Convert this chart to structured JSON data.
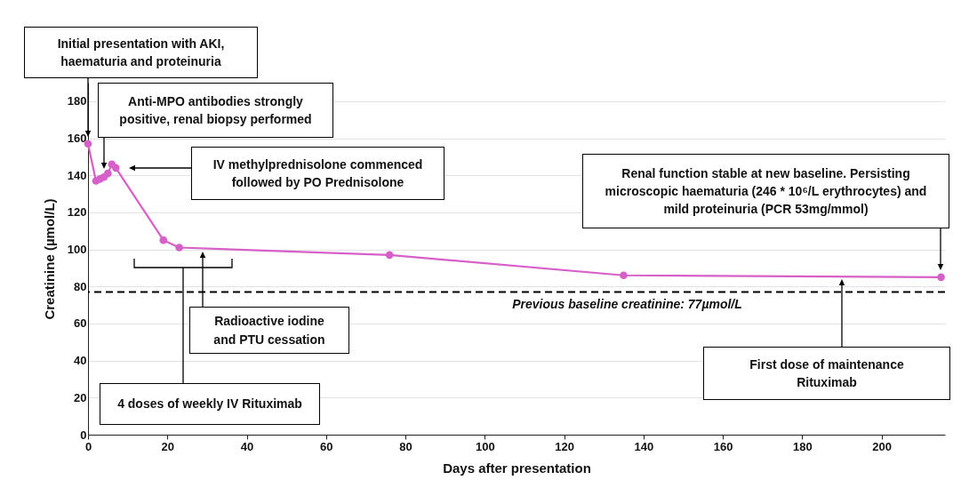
{
  "chart_data": {
    "type": "line",
    "xlabel": "Days after presentation",
    "ylabel": "Creatinine (µmol/L)",
    "xlim": [
      0,
      216
    ],
    "ylim": [
      0,
      190
    ],
    "xticks": [
      0,
      20,
      40,
      60,
      80,
      100,
      120,
      140,
      160,
      180,
      200
    ],
    "yticks": [
      0,
      20,
      40,
      60,
      80,
      100,
      120,
      140,
      160,
      180
    ],
    "grid": "y",
    "marker": "circle",
    "series": [
      {
        "color": "#d660c8",
        "x": [
          0,
          2,
          3,
          4,
          5,
          6,
          7,
          19,
          23,
          76,
          135,
          215
        ],
        "values": [
          157,
          137,
          138,
          139,
          141,
          146,
          144,
          105,
          101,
          97,
          86,
          85
        ]
      }
    ],
    "ref_lines": [
      {
        "axis": "y",
        "value": 77,
        "label": "Previous baseline creatinine: 77µmol/L",
        "line_style": "dashed",
        "color": "#000000"
      }
    ],
    "annotations": [
      "Initial presentation with AKI, haematuria and proteinuria",
      "Anti-MPO antibodies strongly positive, renal biopsy performed",
      "IV methylprednisolone commenced followed by PO Prednisolone",
      "Radioactive iodine and PTU cessation",
      "4 doses of weekly IV Rituximab",
      "Renal function stable at new baseline. Persisting microscopic haematuria (246 * 10⁶/L erythrocytes) and mild proteinuria (PCR 53mg/mmol)",
      "First dose of maintenance Rituximab"
    ]
  }
}
